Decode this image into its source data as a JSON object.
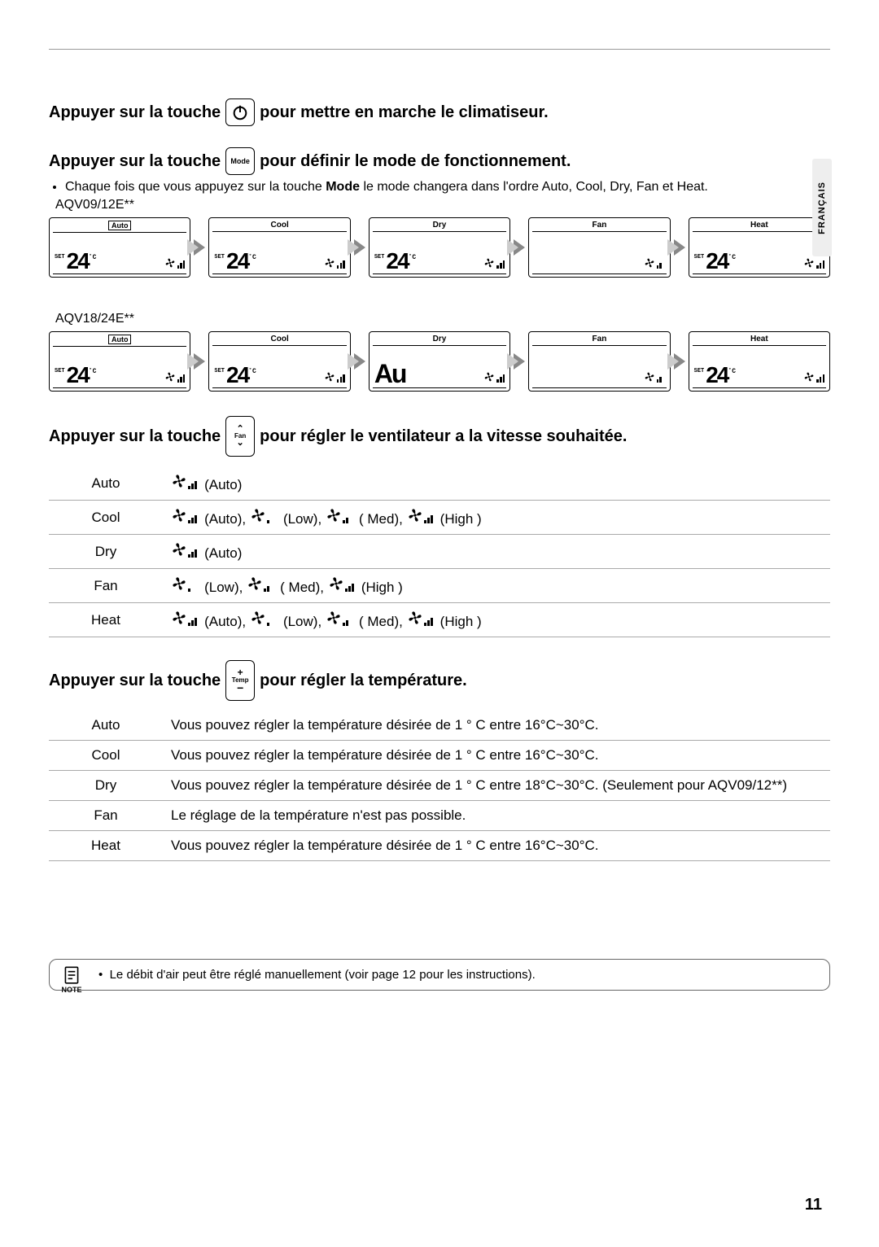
{
  "sideTab": "FRANÇAIS",
  "instr1": {
    "before": "Appuyer sur la touche",
    "after": "pour mettre en marche le climatiseur."
  },
  "instr2": {
    "before": "Appuyer sur la touche",
    "btn": "Mode",
    "after": "pour définir le mode de fonctionnement."
  },
  "modeBullet": "Chaque fois que vous appuyez sur la touche <b>Mode</b> le mode changera dans l'ordre Auto, Cool, Dry, Fan et Heat.",
  "model1": "AQV09/12E**",
  "model2": "AQV18/24E**",
  "modes": [
    "Auto",
    "Cool",
    "Dry",
    "Fan",
    "Heat"
  ],
  "temp24": "24",
  "setLabel": "SET",
  "cLabel": "˚C",
  "dryAu": "Au",
  "instr3": {
    "before": "Appuyer sur la touche",
    "btnTop": "⌃",
    "btnMid": "Fan",
    "btnBot": "⌄",
    "after": "pour régler le ventilateur a la vitesse souhaitée."
  },
  "fanTable": {
    "rows": [
      {
        "mode": "Auto",
        "speeds": [
          {
            "lvl": "auto",
            "label": "(Auto)"
          }
        ]
      },
      {
        "mode": "Cool",
        "speeds": [
          {
            "lvl": "auto",
            "label": "(Auto),"
          },
          {
            "lvl": "low",
            "label": "(Low),"
          },
          {
            "lvl": "med",
            "label": "( Med),"
          },
          {
            "lvl": "high",
            "label": "(High )"
          }
        ]
      },
      {
        "mode": "Dry",
        "speeds": [
          {
            "lvl": "auto",
            "label": "(Auto)"
          }
        ]
      },
      {
        "mode": "Fan",
        "speeds": [
          {
            "lvl": "low",
            "label": "(Low),"
          },
          {
            "lvl": "med",
            "label": "( Med),"
          },
          {
            "lvl": "high",
            "label": "(High )"
          }
        ]
      },
      {
        "mode": "Heat",
        "speeds": [
          {
            "lvl": "auto",
            "label": "(Auto),"
          },
          {
            "lvl": "low",
            "label": "(Low),"
          },
          {
            "lvl": "med",
            "label": "( Med),"
          },
          {
            "lvl": "high",
            "label": "(High )"
          }
        ]
      }
    ]
  },
  "instr4": {
    "before": "Appuyer sur la touche",
    "btnTop": "+",
    "btnMid": "Temp",
    "btnBot": "−",
    "after": "pour régler la température."
  },
  "tempTable": [
    {
      "mode": "Auto",
      "desc": "Vous pouvez régler la température désirée de 1 ° C entre 16°C~30°C."
    },
    {
      "mode": "Cool",
      "desc": "Vous pouvez régler la température désirée de 1 ° C entre 16°C~30°C."
    },
    {
      "mode": "Dry",
      "desc": "Vous pouvez régler la température désirée de 1 ° C entre 18°C~30°C. (Seulement pour AQV09/12**)"
    },
    {
      "mode": "Fan",
      "desc": "Le réglage de la température n'est pas possible."
    },
    {
      "mode": "Heat",
      "desc": "Vous pouvez régler la température désirée de 1 ° C entre 16°C~30°C."
    }
  ],
  "note": {
    "label": "NOTE",
    "text": "Le débit d'air peut être réglé manuellement (voir page 12 pour les instructions)."
  },
  "pageNum": "11",
  "colors": {
    "text": "#000000",
    "bg": "#ffffff",
    "arrowDark": "#888888",
    "arrowLight": "#cccccc",
    "divider": "#aaaaaa"
  }
}
